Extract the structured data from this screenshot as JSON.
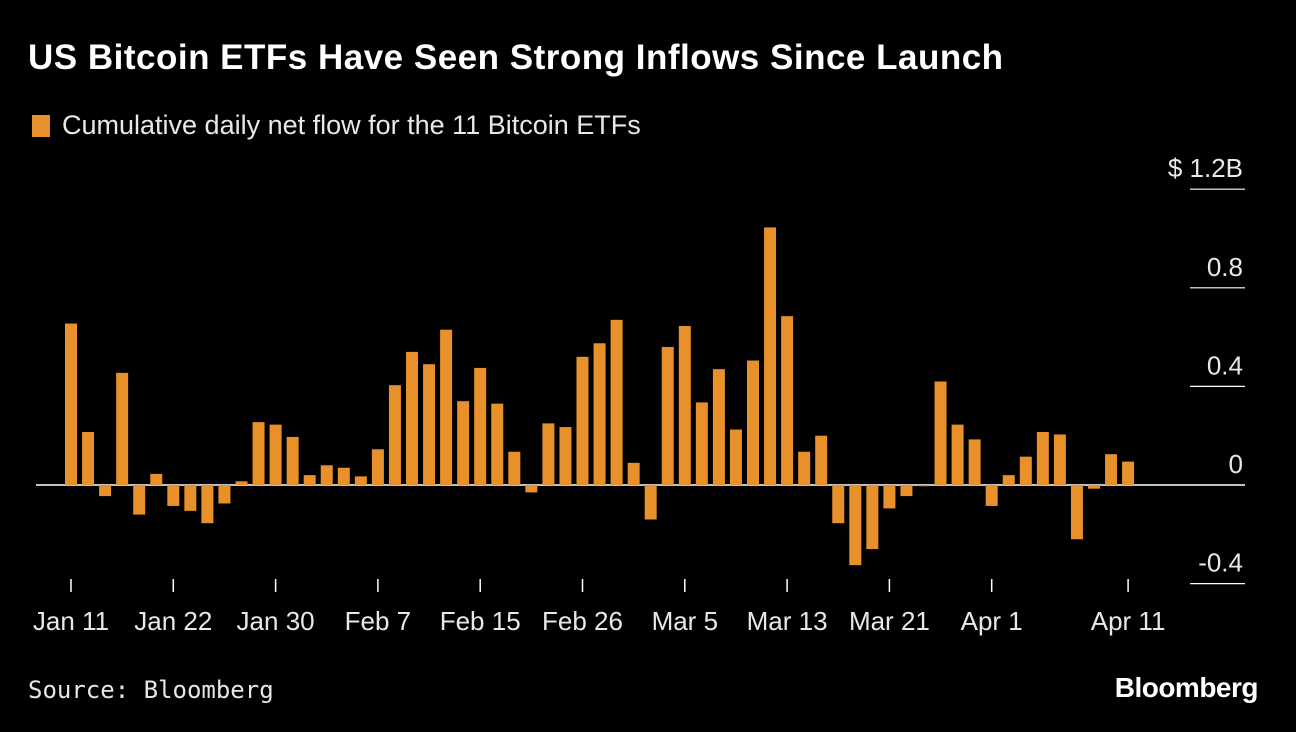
{
  "chart_data": {
    "type": "bar",
    "title": "US Bitcoin ETFs Have Seen Strong Inflows Since Launch",
    "legend": [
      {
        "label": "Cumulative daily net flow for the 11 Bitcoin ETFs",
        "color": "#e8902a"
      }
    ],
    "y_unit_prefix": "$",
    "y_ticks": [
      {
        "value": 1.2,
        "label": "1.2B"
      },
      {
        "value": 0.8,
        "label": "0.8"
      },
      {
        "value": 0.4,
        "label": "0.4"
      },
      {
        "value": 0,
        "label": "0"
      },
      {
        "value": -0.4,
        "label": "-0.4"
      }
    ],
    "ylim": [
      -0.4,
      1.2
    ],
    "x_ticks": [
      {
        "index": 0,
        "label": "Jan 11"
      },
      {
        "index": 6,
        "label": "Jan 22"
      },
      {
        "index": 12,
        "label": "Jan 30"
      },
      {
        "index": 18,
        "label": "Feb 7"
      },
      {
        "index": 24,
        "label": "Feb 15"
      },
      {
        "index": 30,
        "label": "Feb 26"
      },
      {
        "index": 36,
        "label": "Mar 5"
      },
      {
        "index": 42,
        "label": "Mar 13"
      },
      {
        "index": 48,
        "label": "Mar 21"
      },
      {
        "index": 54,
        "label": "Apr 1"
      },
      {
        "index": 62,
        "label": "Apr 11"
      }
    ],
    "values": [
      0.655,
      0.215,
      -0.045,
      0.455,
      -0.12,
      0.045,
      -0.085,
      -0.105,
      -0.155,
      -0.075,
      0.015,
      0.255,
      0.245,
      0.195,
      0.04,
      0.08,
      0.07,
      0.035,
      0.145,
      0.405,
      0.54,
      0.49,
      0.63,
      0.34,
      0.475,
      0.33,
      0.135,
      -0.03,
      0.25,
      0.235,
      0.52,
      0.575,
      0.67,
      0.09,
      -0.14,
      0.56,
      0.645,
      0.335,
      0.47,
      0.225,
      0.505,
      1.045,
      0.685,
      0.135,
      0.2,
      -0.155,
      -0.325,
      -0.26,
      -0.095,
      -0.045,
      -0.005,
      0.42,
      0.245,
      0.185,
      -0.085,
      0.04,
      0.115,
      0.215,
      0.205,
      -0.22,
      -0.015,
      0.125,
      0.095
    ],
    "grid": false
  },
  "source": "Source: Bloomberg",
  "brand": "Bloomberg"
}
